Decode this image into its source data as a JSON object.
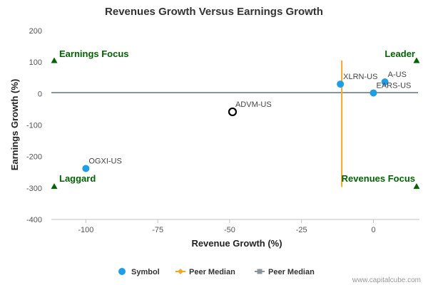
{
  "chart_data": {
    "type": "scatter",
    "title": "Revenues Growth Versus Earnings Growth",
    "xlabel": "Revenue Growth (%)",
    "ylabel": "Earnings Growth (%)",
    "xlim": [
      -112,
      16
    ],
    "ylim": [
      -400,
      200
    ],
    "x_ticks": [
      -100,
      -75,
      -50,
      -25,
      0
    ],
    "y_ticks": [
      200,
      100,
      0,
      -100,
      -200,
      -300,
      -400
    ],
    "grid": false,
    "points": [
      {
        "label": "A-US",
        "x": 4,
        "y": 37,
        "style": "filled",
        "color": "#1e9ee6"
      },
      {
        "label": "XLRN-US",
        "x": -11.5,
        "y": 30,
        "style": "filled",
        "color": "#1e9ee6"
      },
      {
        "label": "EARS-US",
        "x": 0,
        "y": 2,
        "style": "filled",
        "color": "#1e9ee6"
      },
      {
        "label": "ADVM-US",
        "x": -49,
        "y": -58,
        "style": "hollow",
        "color": "#000000"
      },
      {
        "label": "OGXI-US",
        "x": -100,
        "y": -238,
        "style": "filled",
        "color": "#1e9ee6"
      }
    ],
    "peer_median_revenue": {
      "x": -11,
      "y_range": [
        -297,
        105
      ],
      "color": "#f5a623"
    },
    "peer_median_earnings": {
      "y": 3,
      "color": "#8a949e"
    },
    "quadrant_labels": [
      {
        "text": "Earnings Focus",
        "corner": "top-left"
      },
      {
        "text": "Leader",
        "corner": "top-right"
      },
      {
        "text": "Laggard",
        "corner": "bottom-left"
      },
      {
        "text": "Revenues Focus",
        "corner": "bottom-right"
      }
    ],
    "quadrant_markers": [
      {
        "x": -111,
        "y": 105
      },
      {
        "x": 15,
        "y": 105
      },
      {
        "x": -111,
        "y": -295
      },
      {
        "x": 15,
        "y": -295
      }
    ],
    "legend": [
      {
        "label": "Symbol",
        "kind": "dot",
        "color": "#1e9ee6"
      },
      {
        "label": "Peer Median",
        "kind": "line-diamond",
        "color": "#f5a623"
      },
      {
        "label": "Peer Median",
        "kind": "line-square",
        "color": "#8a949e"
      }
    ],
    "legend_position": "bottom-center"
  },
  "credit": "www.capitalcube.com"
}
